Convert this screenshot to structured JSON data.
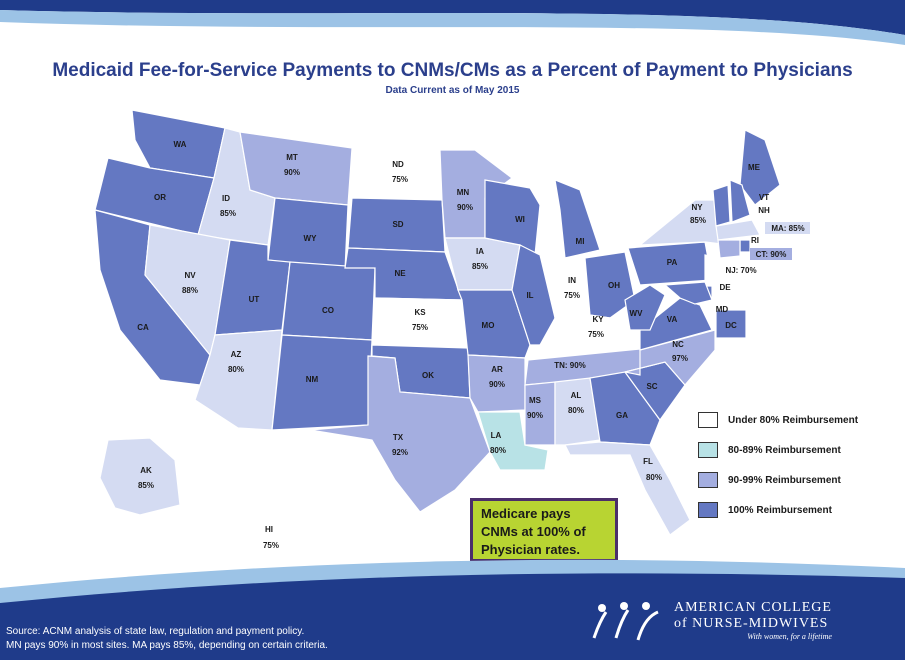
{
  "title": "Medicaid Fee-for-Service Payments to CNMs/CMs as a Percent of Payment to Physicians",
  "subtitle": "Data Current as of May 2015",
  "colors": {
    "under_80": "#ffffff",
    "pct_80_89": "#b8e2e6",
    "pct_90_99": "#a4aee0",
    "pct_100": "#6478c2",
    "title": "#2b3f8c",
    "wave_dark": "#1f3b8a",
    "wave_light": "#9cc3e6"
  },
  "legend": [
    {
      "label": "Under 80% Reimbursement",
      "color": "#ffffff"
    },
    {
      "label": "80-89% Reimbursement",
      "color": "#b8e2e6"
    },
    {
      "label": "90-99% Reimbursement",
      "color": "#a4aee0"
    },
    {
      "label": "100% Reimbursement",
      "color": "#6478c2"
    }
  ],
  "states": [
    {
      "abbr": "WA",
      "pct": ""
    },
    {
      "abbr": "OR",
      "pct": ""
    },
    {
      "abbr": "CA",
      "pct": ""
    },
    {
      "abbr": "ID",
      "pct": "85%"
    },
    {
      "abbr": "NV",
      "pct": "88%"
    },
    {
      "abbr": "MT",
      "pct": "90%"
    },
    {
      "abbr": "WY",
      "pct": ""
    },
    {
      "abbr": "UT",
      "pct": ""
    },
    {
      "abbr": "AZ",
      "pct": "80%"
    },
    {
      "abbr": "CO",
      "pct": ""
    },
    {
      "abbr": "NM",
      "pct": ""
    },
    {
      "abbr": "ND",
      "pct": "75%"
    },
    {
      "abbr": "SD",
      "pct": ""
    },
    {
      "abbr": "NE",
      "pct": ""
    },
    {
      "abbr": "KS",
      "pct": "75%"
    },
    {
      "abbr": "OK",
      "pct": ""
    },
    {
      "abbr": "TX",
      "pct": "92%"
    },
    {
      "abbr": "MN",
      "pct": "90%"
    },
    {
      "abbr": "IA",
      "pct": "85%"
    },
    {
      "abbr": "MO",
      "pct": ""
    },
    {
      "abbr": "AR",
      "pct": "90%"
    },
    {
      "abbr": "LA",
      "pct": "80%"
    },
    {
      "abbr": "WI",
      "pct": ""
    },
    {
      "abbr": "IL",
      "pct": ""
    },
    {
      "abbr": "MI",
      "pct": ""
    },
    {
      "abbr": "IN",
      "pct": "75%"
    },
    {
      "abbr": "OH",
      "pct": ""
    },
    {
      "abbr": "KY",
      "pct": "75%"
    },
    {
      "abbr": "TN",
      "pct": "TN: 90%"
    },
    {
      "abbr": "MS",
      "pct": "90%"
    },
    {
      "abbr": "AL",
      "pct": "80%"
    },
    {
      "abbr": "GA",
      "pct": ""
    },
    {
      "abbr": "FL",
      "pct": "80%"
    },
    {
      "abbr": "SC",
      "pct": ""
    },
    {
      "abbr": "NC",
      "pct": "97%"
    },
    {
      "abbr": "VA",
      "pct": ""
    },
    {
      "abbr": "WV",
      "pct": ""
    },
    {
      "abbr": "PA",
      "pct": ""
    },
    {
      "abbr": "NY",
      "pct": "85%"
    },
    {
      "abbr": "ME",
      "pct": ""
    },
    {
      "abbr": "VT",
      "pct": ""
    },
    {
      "abbr": "NH",
      "pct": ""
    },
    {
      "abbr": "MA",
      "pct": "MA:  85%"
    },
    {
      "abbr": "RI",
      "pct": ""
    },
    {
      "abbr": "CT",
      "pct": "CT: 90%"
    },
    {
      "abbr": "NJ",
      "pct": "NJ: 70%"
    },
    {
      "abbr": "DE",
      "pct": ""
    },
    {
      "abbr": "MD",
      "pct": ""
    },
    {
      "abbr": "DC",
      "pct": ""
    },
    {
      "abbr": "AK",
      "pct": "85%"
    },
    {
      "abbr": "HI",
      "pct": "75%"
    }
  ],
  "callout": "Medicare pays CNMs at 100% of Physician rates.",
  "source": {
    "line1": "Source:  ACNM analysis of state law, regulation and payment policy.",
    "line2": "MN pays 90% in most sites.  MA pays 85%, depending on certain criteria."
  },
  "logo": {
    "line1": "AMERICAN COLLEGE",
    "line2": "of NURSE-MIDWIVES",
    "tagline": "With women, for a lifetime"
  }
}
